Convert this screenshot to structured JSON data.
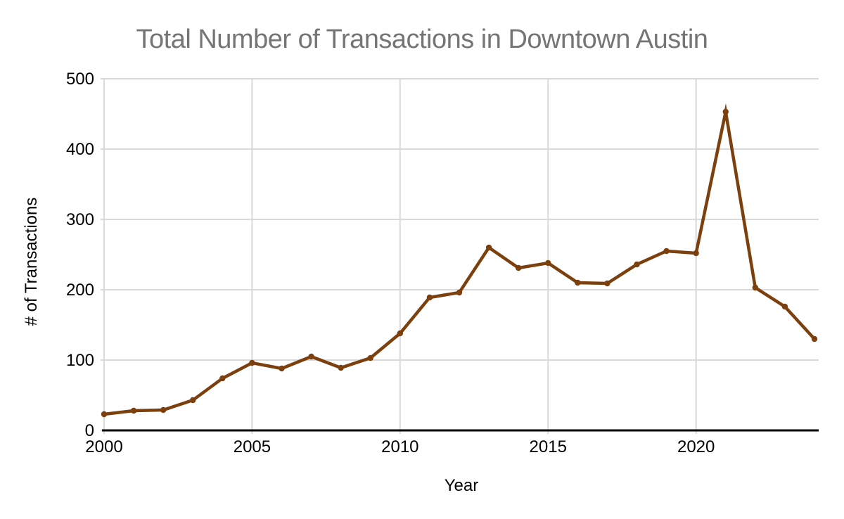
{
  "chart_data": {
    "type": "line",
    "title": "Total Number of Transactions in Downtown Austin",
    "xlabel": "Year",
    "ylabel": "# of Transactions",
    "x": [
      2000,
      2001,
      2002,
      2003,
      2004,
      2005,
      2006,
      2007,
      2008,
      2009,
      2010,
      2011,
      2012,
      2013,
      2014,
      2015,
      2016,
      2017,
      2018,
      2019,
      2020,
      2021,
      2022,
      2023,
      2024
    ],
    "values": [
      23,
      28,
      29,
      43,
      74,
      96,
      88,
      105,
      89,
      103,
      138,
      189,
      196,
      260,
      231,
      238,
      210,
      209,
      236,
      255,
      252,
      453,
      203,
      176,
      130
    ],
    "xticks": [
      2000,
      2005,
      2010,
      2015,
      2020
    ],
    "yticks": [
      0,
      100,
      200,
      300,
      400,
      500
    ],
    "xlim": [
      2000,
      2024
    ],
    "ylim": [
      0,
      500
    ],
    "grid": true,
    "legend_position": "none",
    "marker": "circle",
    "colors": {
      "line": "#7c3f0e",
      "marker": "#7c3f0e",
      "title": "#757575",
      "axis_text": "#000000",
      "gridline": "#d9d9d9",
      "axis_line": "#000000"
    }
  }
}
